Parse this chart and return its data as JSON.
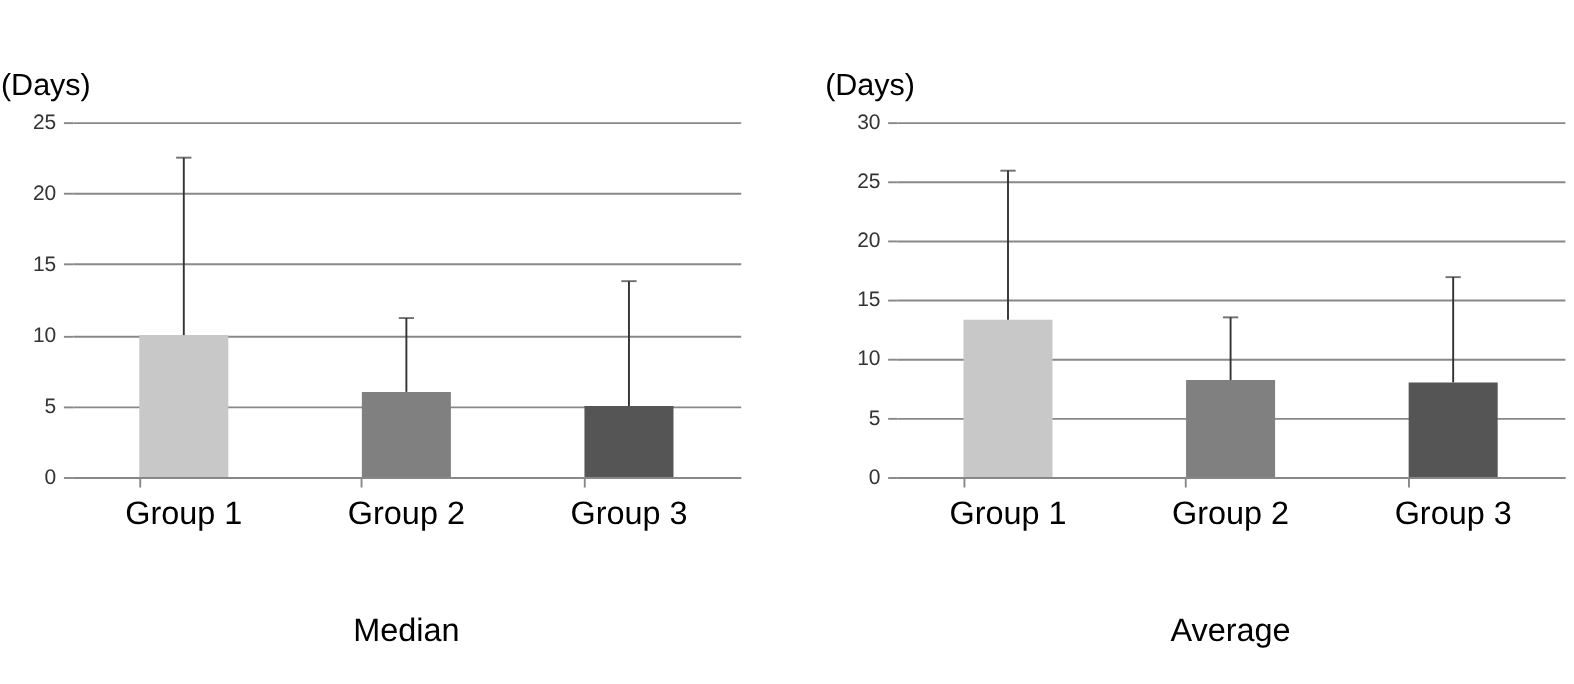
{
  "chart_data": [
    {
      "type": "bar",
      "title": "Median",
      "ylabel": "(Days)",
      "categories": [
        "Group 1",
        "Group 2",
        "Group 3"
      ],
      "values": [
        10,
        6,
        5
      ],
      "colors": [
        "#c8c8c8",
        "#808080",
        "#555555"
      ],
      "errors": [
        [
          10,
          22.5
        ],
        [
          6,
          11.2
        ],
        [
          5,
          13.8
        ]
      ],
      "ylim": [
        0,
        25
      ],
      "yticks": [
        0,
        5,
        10,
        15,
        20,
        25
      ],
      "grid": "y",
      "legend": false
    },
    {
      "type": "bar",
      "title": "Average",
      "ylabel": "(Days)",
      "categories": [
        "Group 1",
        "Group 2",
        "Group 3"
      ],
      "values": [
        13.3,
        8.2,
        8.0
      ],
      "colors": [
        "#c8c8c8",
        "#808080",
        "#555555"
      ],
      "errors": [
        [
          13.3,
          25.9
        ],
        [
          8.2,
          13.5
        ],
        [
          8.0,
          16.9
        ]
      ],
      "ylim": [
        0,
        30
      ],
      "yticks": [
        0,
        5,
        10,
        15,
        20,
        25,
        30
      ],
      "grid": "y",
      "legend": false
    }
  ]
}
